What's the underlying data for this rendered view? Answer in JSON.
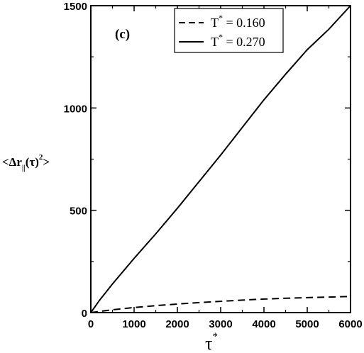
{
  "chart_data": {
    "type": "line",
    "panel_label": "(c)",
    "xlabel": "τ",
    "xlabel_sup": "*",
    "ylabel": {
      "open": "<Δr",
      "subscript": "||",
      "middle": "(τ)",
      "superscript": "2",
      "close": ">"
    },
    "xlim": [
      0,
      6000
    ],
    "ylim": [
      0,
      1500
    ],
    "x_ticks": [
      0,
      1000,
      2000,
      3000,
      4000,
      5000,
      6000
    ],
    "y_ticks": [
      0,
      500,
      1000,
      1500
    ],
    "legend_position": "top-right",
    "series": [
      {
        "name": "T* = 0.160",
        "legend": {
          "prefix": "T",
          "sup": "*",
          "rest": " = 0.160"
        },
        "style": "dashed",
        "color": "#000000",
        "x": [
          0,
          500,
          1000,
          1500,
          2000,
          2500,
          3000,
          3500,
          4000,
          4500,
          5000,
          5500,
          6000
        ],
        "y": [
          0,
          14,
          25,
          34,
          42,
          49,
          55,
          61,
          66,
          70,
          73,
          76,
          79
        ]
      },
      {
        "name": "T* = 0.270",
        "legend": {
          "prefix": "T",
          "sup": "*",
          "rest": " = 0.270"
        },
        "style": "solid",
        "color": "#000000",
        "x": [
          0,
          200,
          500,
          1000,
          1500,
          2000,
          2500,
          3000,
          3500,
          4000,
          4500,
          5000,
          5500,
          6000
        ],
        "y": [
          0,
          60,
          140,
          265,
          385,
          510,
          640,
          770,
          905,
          1040,
          1165,
          1285,
          1385,
          1500
        ]
      }
    ]
  }
}
